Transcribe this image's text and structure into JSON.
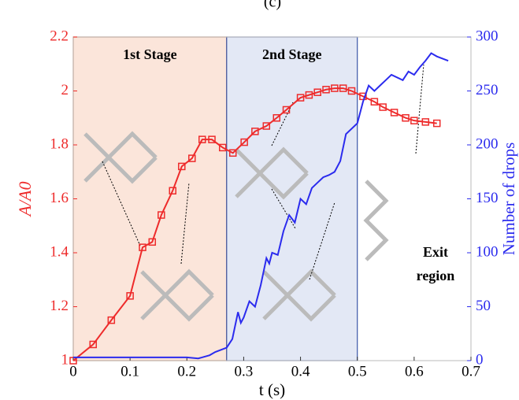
{
  "chart_data": {
    "type": "line",
    "title": "(c)",
    "xlabel": "t (s)",
    "ylabel": "A/A0",
    "y2label": "Number of drops",
    "xlim": [
      0,
      0.7
    ],
    "xticks": [
      0,
      0.1,
      0.2,
      0.3,
      0.4,
      0.5,
      0.6,
      0.7
    ],
    "ylim": [
      1,
      2.2
    ],
    "yticks": [
      1,
      1.2,
      1.4,
      1.6,
      1.8,
      2,
      2.2
    ],
    "y2lim": [
      0,
      300
    ],
    "y2ticks": [
      0,
      50,
      100,
      150,
      200,
      250,
      300
    ],
    "regions": [
      {
        "label": "1st Stage",
        "xlim": [
          0,
          0.27
        ],
        "color": "#fbe5da",
        "edge": "#c8652d"
      },
      {
        "label": "2nd Stage",
        "xlim": [
          0.27,
          0.5
        ],
        "color": "#e3e8f5",
        "edge": "#3a56a8"
      }
    ],
    "annotation": [
      "Exit",
      "region"
    ],
    "series": [
      {
        "name": "A/A0",
        "color": "#ee2b2b",
        "marker": "square",
        "x": [
          0,
          0.035,
          0.067,
          0.1,
          0.122,
          0.139,
          0.155,
          0.175,
          0.191,
          0.209,
          0.227,
          0.244,
          0.263,
          0.281,
          0.301,
          0.32,
          0.34,
          0.358,
          0.375,
          0.4,
          0.415,
          0.43,
          0.445,
          0.46,
          0.475,
          0.49,
          0.51,
          0.53,
          0.545,
          0.565,
          0.585,
          0.6,
          0.62,
          0.64
        ],
        "values": [
          1.0,
          1.06,
          1.15,
          1.24,
          1.42,
          1.44,
          1.54,
          1.63,
          1.72,
          1.75,
          1.82,
          1.82,
          1.79,
          1.77,
          1.81,
          1.85,
          1.87,
          1.9,
          1.93,
          1.975,
          1.985,
          1.995,
          2.005,
          2.01,
          2.01,
          2.0,
          1.98,
          1.96,
          1.94,
          1.92,
          1.9,
          1.89,
          1.885,
          1.88
        ]
      },
      {
        "name": "Number of drops",
        "color": "#2b2bee",
        "axis": "y2",
        "x": [
          0,
          0.02,
          0.2,
          0.22,
          0.24,
          0.25,
          0.26,
          0.27,
          0.28,
          0.29,
          0.295,
          0.3,
          0.31,
          0.32,
          0.33,
          0.34,
          0.345,
          0.35,
          0.36,
          0.37,
          0.38,
          0.39,
          0.4,
          0.41,
          0.42,
          0.43,
          0.44,
          0.45,
          0.46,
          0.47,
          0.48,
          0.49,
          0.5,
          0.51,
          0.52,
          0.53,
          0.54,
          0.55,
          0.56,
          0.58,
          0.59,
          0.6,
          0.61,
          0.62,
          0.63,
          0.64,
          0.65,
          0.66
        ],
        "values": [
          3,
          3,
          3,
          2,
          5,
          8,
          10,
          12,
          20,
          45,
          35,
          40,
          55,
          50,
          70,
          95,
          90,
          100,
          98,
          120,
          135,
          128,
          150,
          145,
          160,
          165,
          170,
          172,
          175,
          185,
          210,
          215,
          220,
          240,
          255,
          250,
          255,
          260,
          265,
          260,
          268,
          265,
          272,
          278,
          285,
          282,
          280,
          278
        ]
      }
    ]
  }
}
